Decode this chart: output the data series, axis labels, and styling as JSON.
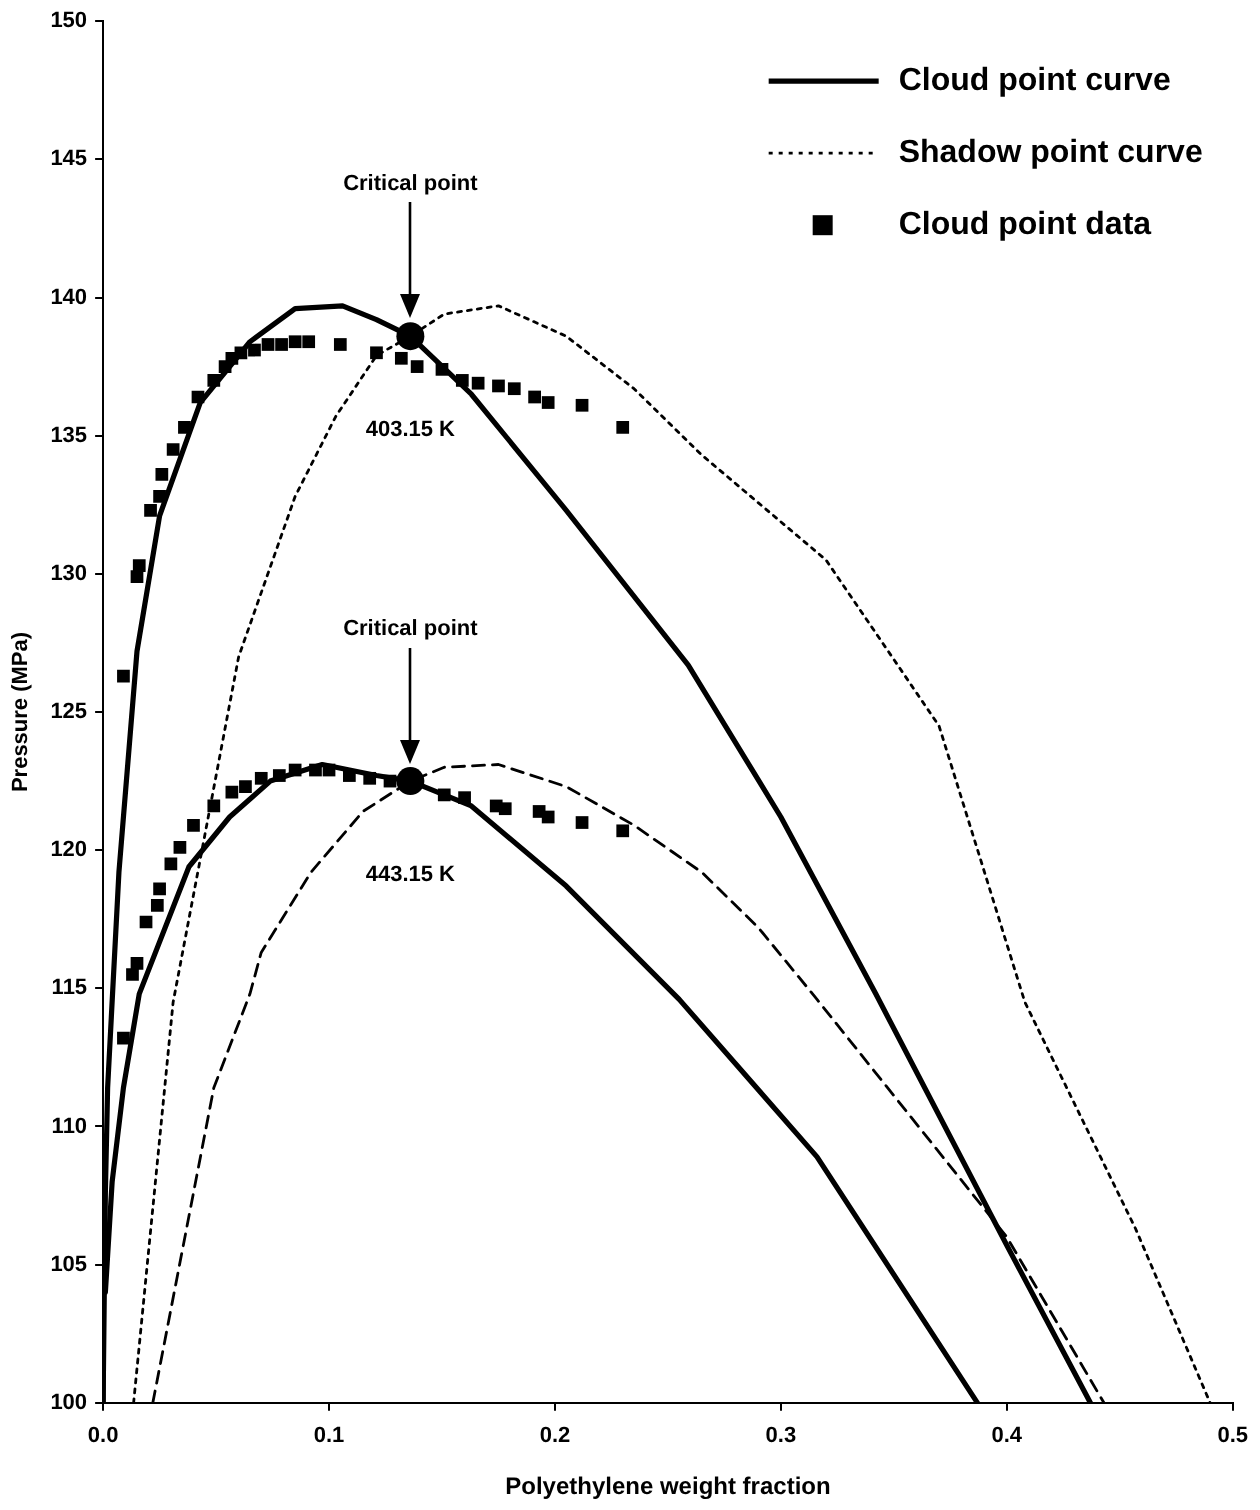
{
  "chart_data": {
    "type": "line",
    "xlabel": "Polyethylene weight fraction",
    "ylabel": "Pressure (MPa)",
    "xlim": [
      0,
      0.5
    ],
    "ylim": [
      100,
      150
    ],
    "xticks": [
      {
        "value": 0,
        "label": "0.0"
      },
      0.1,
      0.2,
      0.3,
      0.4,
      0.5
    ],
    "yticks": [
      100,
      105,
      110,
      115,
      120,
      125,
      130,
      135,
      140,
      145,
      150
    ],
    "grid": false,
    "legend": "top right",
    "series": [
      {
        "name": "Cloud point curve",
        "color": "#000000",
        "line_style": "solid",
        "marker": "none",
        "x": [
          0,
          0.001,
          0.002,
          0.007,
          0.015,
          0.025,
          0.043,
          0.065,
          0.085,
          0.106,
          0.121,
          0.136,
          0.163,
          0.205,
          0.259,
          0.3,
          0.342,
          0.4,
          0.437
        ],
        "values": [
          100,
          107.6,
          111.4,
          119.2,
          127.2,
          132.1,
          136.2,
          138.4,
          139.6,
          139.7,
          139.2,
          138.6,
          136.5,
          132.3,
          126.7,
          121.2,
          114.8,
          105.7,
          100
        ]
      },
      {
        "name": "Shadow point curve",
        "color": "#000000",
        "line_style": "dotted",
        "marker": "none",
        "x": [
          0.0135,
          0.031,
          0.06,
          0.085,
          0.103,
          0.121,
          0.136,
          0.151,
          0.175,
          0.205,
          0.235,
          0.265,
          0.32,
          0.37,
          0.408,
          0.457,
          0.49
        ],
        "values": [
          100,
          114.5,
          127,
          132.8,
          135.7,
          137.9,
          138.6,
          139.4,
          139.7,
          138.6,
          136.7,
          134.3,
          130.5,
          124.5,
          114.5,
          106.3,
          100
        ]
      },
      {
        "name": "Cloud point data",
        "type": "scatter",
        "color": "#000000",
        "marker": "square",
        "x": [
          0.009,
          0.015,
          0.016,
          0.021,
          0.025,
          0.026,
          0.031,
          0.036,
          0.042,
          0.049,
          0.054,
          0.057,
          0.061,
          0.067,
          0.073,
          0.079,
          0.085,
          0.091,
          0.105,
          0.121,
          0.132,
          0.139,
          0.15,
          0.159,
          0.166,
          0.175,
          0.182,
          0.191,
          0.197,
          0.212,
          0.23
        ],
        "values": [
          126.3,
          129.9,
          130.3,
          132.3,
          132.8,
          133.6,
          134.5,
          135.3,
          136.4,
          137,
          137.5,
          137.8,
          138,
          138.1,
          138.3,
          138.3,
          138.4,
          138.4,
          138.3,
          138,
          137.8,
          137.5,
          137.4,
          137,
          136.9,
          136.8,
          136.7,
          136.4,
          136.2,
          136.1,
          135.3
        ]
      },
      {
        "color": "#000000",
        "line_style": "solid",
        "marker": "none",
        "x": [
          0,
          0,
          0.001,
          0.004,
          0.009,
          0.016,
          0.038,
          0.056,
          0.074,
          0.097,
          0.121,
          0.136,
          0.163,
          0.205,
          0.255,
          0.316,
          0.387
        ],
        "values": [
          100,
          105,
          104,
          108,
          111.4,
          114.8,
          119.4,
          121.2,
          122.5,
          123.1,
          122.7,
          122.5,
          121.6,
          118.7,
          114.6,
          108.9,
          100
        ]
      },
      {
        "color": "#000000",
        "line_style": "dashed",
        "marker": "none",
        "x": [
          0.022,
          0.049,
          0.065,
          0.07,
          0.092,
          0.115,
          0.136,
          0.151,
          0.175,
          0.205,
          0.235,
          0.265,
          0.29,
          0.316,
          0.4,
          0.443
        ],
        "values": [
          100,
          111.4,
          114.8,
          116.3,
          119.2,
          121.4,
          122.5,
          123,
          123.1,
          122.3,
          120.9,
          119.2,
          117.2,
          114.6,
          106,
          100
        ]
      },
      {
        "type": "scatter",
        "color": "#000000",
        "marker": "square",
        "x": [
          0.009,
          0.013,
          0.015,
          0.019,
          0.024,
          0.025,
          0.03,
          0.034,
          0.04,
          0.049,
          0.057,
          0.063,
          0.07,
          0.078,
          0.085,
          0.094,
          0.1,
          0.109,
          0.118,
          0.127,
          0.151,
          0.16,
          0.174,
          0.178,
          0.193,
          0.197,
          0.212,
          0.23
        ],
        "values": [
          113.2,
          115.5,
          115.9,
          117.4,
          118,
          118.6,
          119.5,
          120.1,
          120.9,
          121.6,
          122.1,
          122.3,
          122.6,
          122.7,
          122.9,
          122.9,
          122.9,
          122.7,
          122.6,
          122.5,
          122,
          121.9,
          121.6,
          121.5,
          121.4,
          121.2,
          121,
          120.7
        ]
      },
      {
        "type": "scatter",
        "color": "#000000",
        "marker": "circle",
        "x": [
          0.136,
          0.136
        ],
        "values": [
          138.6,
          122.5
        ]
      }
    ],
    "annotations": [
      "Critical point",
      "403.15 K",
      "Critical point",
      "443.15 K"
    ]
  }
}
